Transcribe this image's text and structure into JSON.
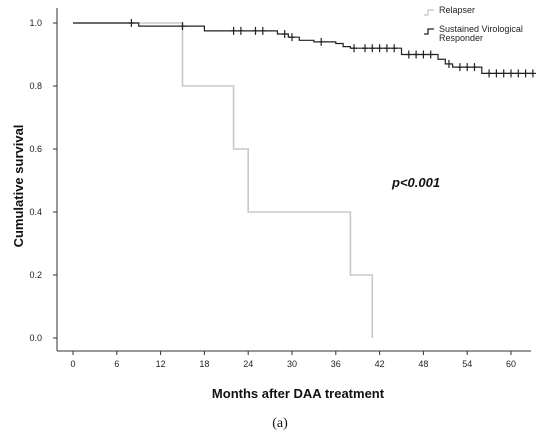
{
  "chart_data": {
    "type": "line",
    "chart_kind": "kaplan-meier step",
    "xlabel": "Months after DAA treatment",
    "ylabel": "Cumulative survival",
    "x_ticks": [
      "0",
      "6",
      "12",
      "18",
      "24",
      "30",
      "36",
      "42",
      "48",
      "54",
      "60"
    ],
    "y_ticks": [
      "0.0",
      "0.2",
      "0.4",
      "0.6",
      "0.8",
      "1.0"
    ],
    "xlim": [
      -3,
      63
    ],
    "ylim": [
      -0.03,
      1.03
    ],
    "grid": false,
    "legend_position": "top-right",
    "annotation": "p<0.001",
    "caption": "(a)",
    "series": [
      {
        "name": "Relapser",
        "color": "#c8c8c8",
        "x": [
          0,
          15,
          15,
          22,
          22,
          24,
          24,
          38,
          38,
          41,
          41
        ],
        "y": [
          1.0,
          1.0,
          0.8,
          0.8,
          0.6,
          0.6,
          0.4,
          0.4,
          0.2,
          0.2,
          0.0
        ],
        "censored": []
      },
      {
        "name": "Sustained Virological Responder",
        "color": "#222222",
        "x": [
          0,
          9,
          9,
          18,
          18,
          28,
          28,
          29.5,
          29.5,
          31,
          31,
          33,
          33,
          36,
          36,
          37,
          37,
          38,
          38,
          45,
          45,
          50,
          50,
          51,
          51,
          52,
          52,
          56,
          56,
          63
        ],
        "y": [
          1.0,
          1.0,
          0.99,
          0.99,
          0.975,
          0.975,
          0.965,
          0.965,
          0.955,
          0.955,
          0.945,
          0.945,
          0.94,
          0.94,
          0.935,
          0.935,
          0.925,
          0.925,
          0.92,
          0.92,
          0.9,
          0.9,
          0.885,
          0.885,
          0.87,
          0.87,
          0.86,
          0.86,
          0.84,
          0.84
        ],
        "censored": [
          {
            "x": 8,
            "y": 1.0
          },
          {
            "x": 15,
            "y": 0.99
          },
          {
            "x": 22,
            "y": 0.975
          },
          {
            "x": 23,
            "y": 0.975
          },
          {
            "x": 25,
            "y": 0.975
          },
          {
            "x": 26,
            "y": 0.975
          },
          {
            "x": 29,
            "y": 0.965
          },
          {
            "x": 30,
            "y": 0.955
          },
          {
            "x": 34,
            "y": 0.94
          },
          {
            "x": 38.5,
            "y": 0.92
          },
          {
            "x": 40,
            "y": 0.92
          },
          {
            "x": 41,
            "y": 0.92
          },
          {
            "x": 42,
            "y": 0.92
          },
          {
            "x": 43,
            "y": 0.92
          },
          {
            "x": 44,
            "y": 0.92
          },
          {
            "x": 46,
            "y": 0.9
          },
          {
            "x": 47,
            "y": 0.9
          },
          {
            "x": 48,
            "y": 0.9
          },
          {
            "x": 49,
            "y": 0.9
          },
          {
            "x": 51.5,
            "y": 0.87
          },
          {
            "x": 53,
            "y": 0.86
          },
          {
            "x": 54,
            "y": 0.86
          },
          {
            "x": 55,
            "y": 0.86
          },
          {
            "x": 57,
            "y": 0.84
          },
          {
            "x": 58,
            "y": 0.84
          },
          {
            "x": 59,
            "y": 0.84
          },
          {
            "x": 60,
            "y": 0.84
          },
          {
            "x": 61,
            "y": 0.84
          },
          {
            "x": 62,
            "y": 0.84
          },
          {
            "x": 63,
            "y": 0.84
          }
        ]
      }
    ],
    "legend": [
      {
        "lines": [
          "Relapser"
        ],
        "color": "#c8c8c8"
      },
      {
        "lines": [
          "Sustained Virological",
          "Responder"
        ],
        "color": "#222222"
      }
    ]
  }
}
